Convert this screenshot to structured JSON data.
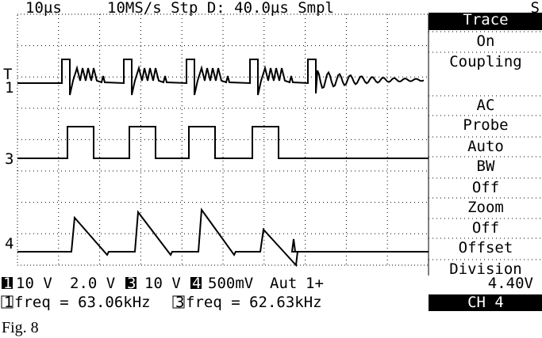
{
  "header": {
    "timebase": "10µs",
    "acquisition": "10MS/s Stp D: 40.0µs Smpl",
    "mode": "S"
  },
  "trigger_marker": "T",
  "channel_markers": [
    "1",
    "3",
    "4"
  ],
  "menu": [
    "Trace",
    "On",
    "Coupling",
    "AC",
    "Probe",
    "Auto",
    "BW",
    "Off",
    "Zoom",
    "Off",
    "Offset",
    "Division"
  ],
  "status_line1": [
    "1",
    "10 V",
    "2.0 V",
    "3",
    "10 V",
    "4",
    "500mV",
    "Aut",
    "1+",
    "4.40V"
  ],
  "status_line2": [
    "1",
    "freq = 63.06kHz",
    "3",
    "freq = 62.63kHz",
    "CH 4"
  ],
  "caption": "Fig. 8"
}
